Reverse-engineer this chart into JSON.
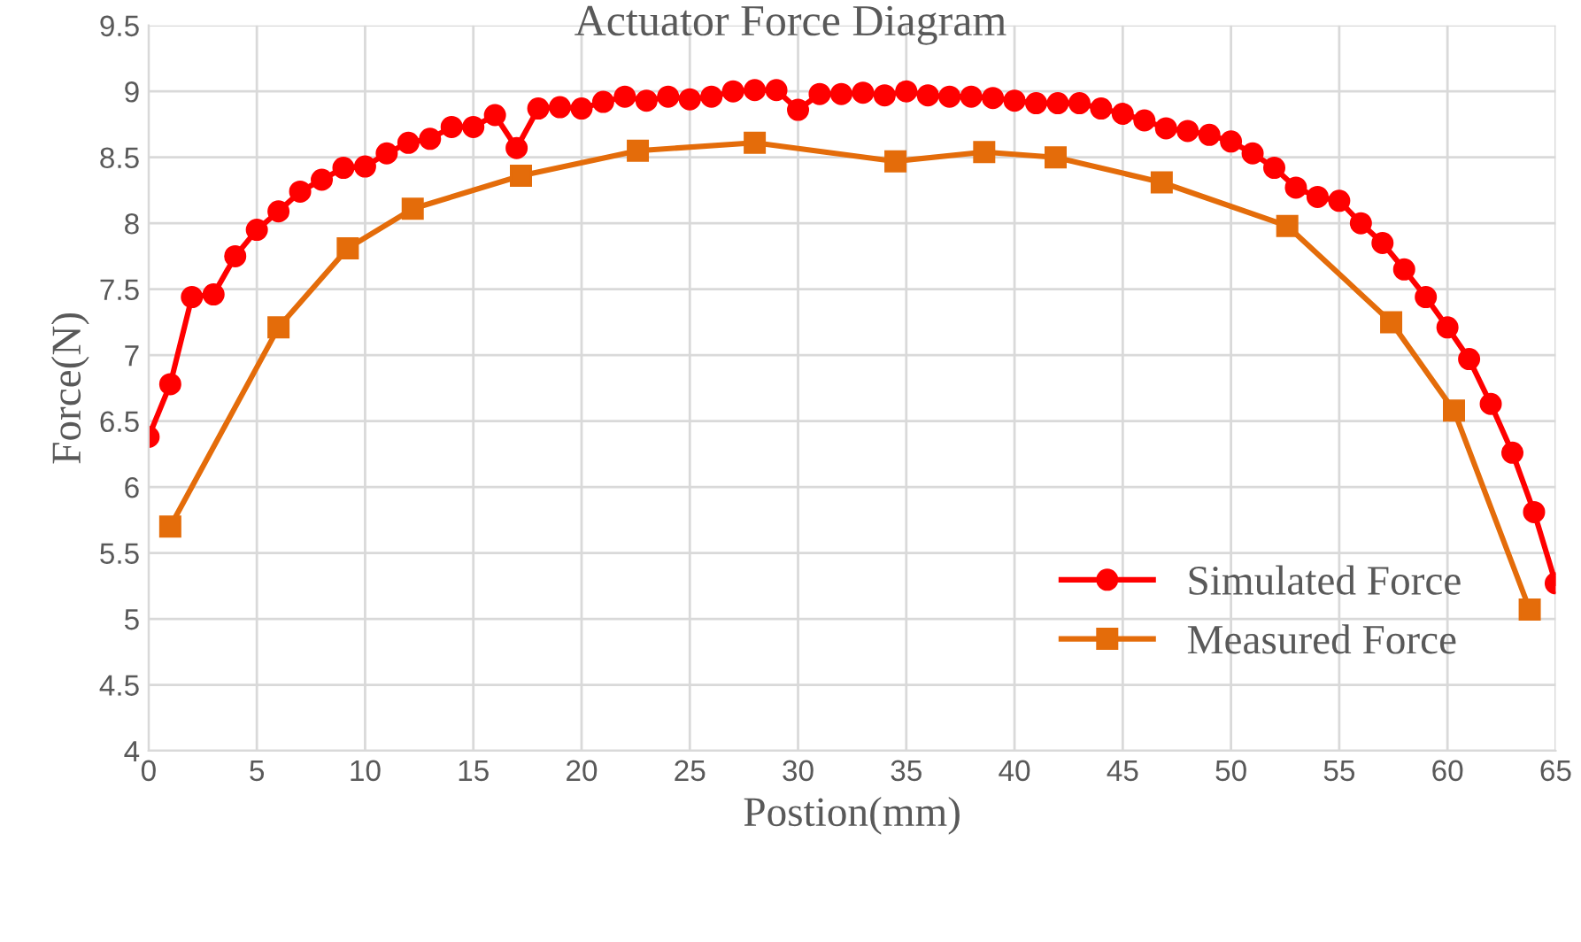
{
  "chart_data": {
    "type": "line",
    "title": "Actuator Force Diagram",
    "xlabel": "Postion(mm)",
    "ylabel": "Force(N)",
    "xlim": [
      0,
      65
    ],
    "xticks": [
      0,
      5,
      10,
      15,
      20,
      25,
      30,
      35,
      40,
      45,
      50,
      55,
      60,
      65
    ],
    "ylim": [
      4,
      9.5
    ],
    "yticks": [
      4,
      4.5,
      5,
      5.5,
      6,
      6.5,
      7,
      7.5,
      8,
      8.5,
      9,
      9.5
    ],
    "grid": true,
    "legend": "bottom right",
    "line_style": "solid",
    "series": [
      {
        "name": "Simulated Force",
        "color": "#ff0000",
        "marker": "circle",
        "x": [
          0,
          1,
          2,
          3,
          4,
          5,
          6,
          7,
          8,
          9,
          10,
          11,
          12,
          13,
          14,
          15,
          16,
          17,
          18,
          19,
          20,
          21,
          22,
          23,
          24,
          25,
          26,
          27,
          28,
          29,
          30,
          31,
          32,
          33,
          34,
          35,
          36,
          37,
          38,
          39,
          40,
          41,
          42,
          43,
          44,
          45,
          46,
          47,
          48,
          49,
          50,
          51,
          52,
          53,
          54,
          55,
          56,
          57,
          58,
          59,
          60,
          61,
          62,
          63,
          64,
          65
        ],
        "values": [
          6.38,
          6.78,
          7.44,
          7.46,
          7.75,
          7.95,
          8.09,
          8.24,
          8.33,
          8.42,
          8.43,
          8.53,
          8.61,
          8.64,
          8.73,
          8.73,
          8.82,
          8.57,
          8.87,
          8.88,
          8.87,
          8.92,
          8.96,
          8.93,
          8.96,
          8.94,
          8.96,
          9.0,
          9.01,
          9.01,
          8.86,
          8.98,
          8.98,
          8.99,
          8.97,
          9.0,
          8.97,
          8.96,
          8.96,
          8.95,
          8.93,
          8.91,
          8.91,
          8.91,
          8.87,
          8.83,
          8.78,
          8.72,
          8.7,
          8.67,
          8.62,
          8.53,
          8.42,
          8.27,
          8.2,
          8.17,
          8.0,
          7.85,
          7.65,
          7.44,
          7.21,
          6.97,
          6.63,
          6.26,
          5.81,
          5.27
        ]
      },
      {
        "name": "Measured Force",
        "color": "#e46c0a",
        "marker": "square",
        "x": [
          1,
          6,
          9.2,
          12.2,
          17.2,
          22.6,
          28,
          34.5,
          38.6,
          41.9,
          46.8,
          52.6,
          57.4,
          60.3,
          63.8
        ],
        "values": [
          5.7,
          7.21,
          7.81,
          8.11,
          8.36,
          8.55,
          8.61,
          8.47,
          8.54,
          8.5,
          8.31,
          7.98,
          7.25,
          6.58,
          5.07
        ]
      }
    ]
  }
}
